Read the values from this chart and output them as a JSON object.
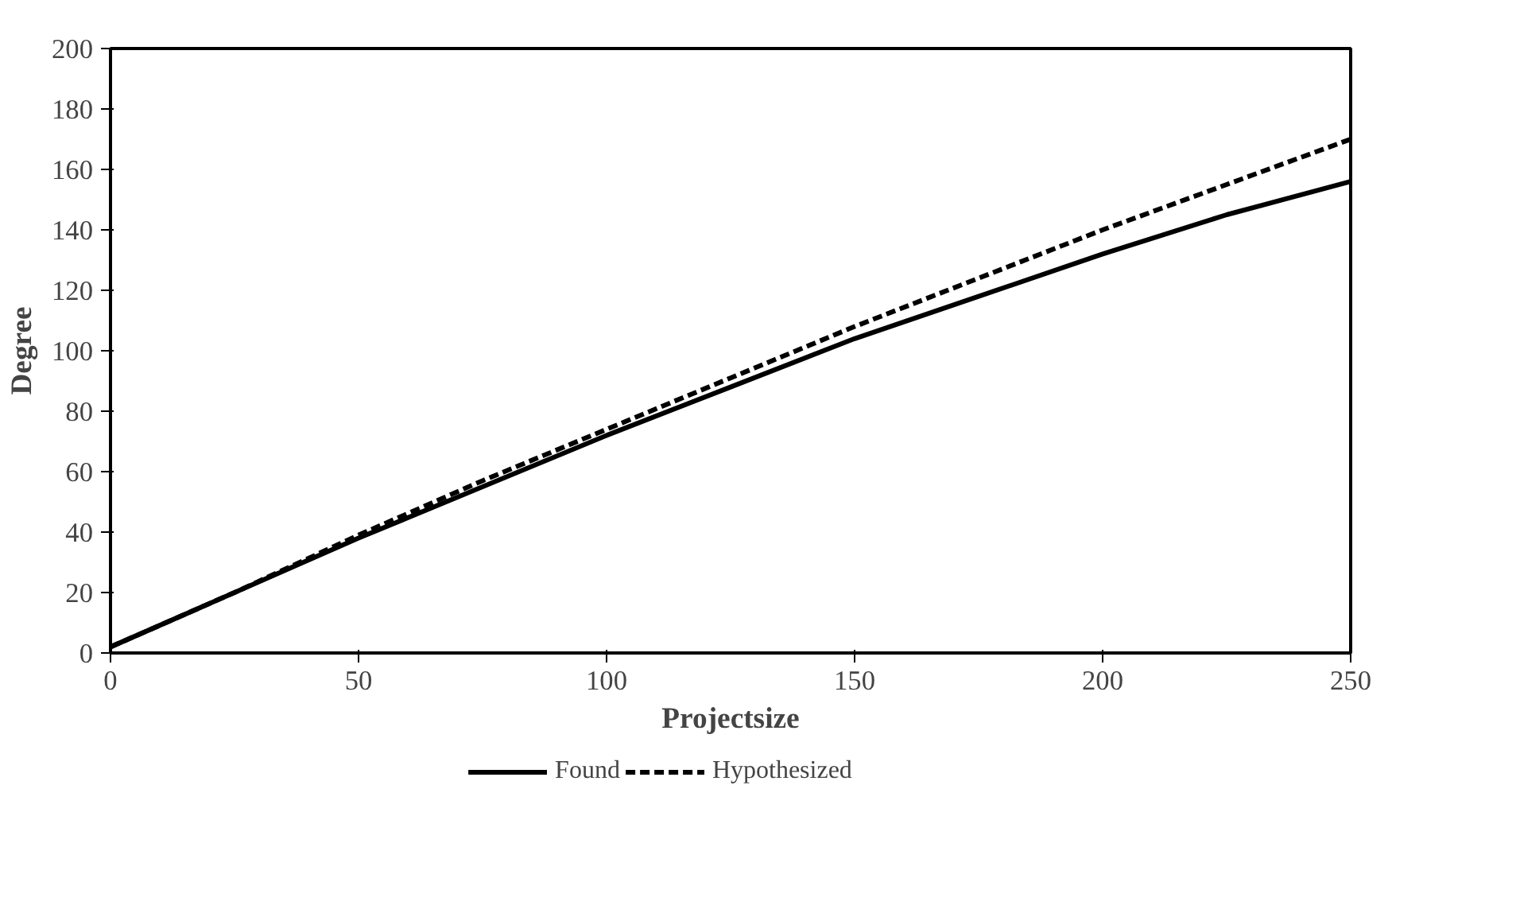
{
  "chart_data": {
    "type": "line",
    "xlabel": "Projectsize",
    "ylabel": "Degree",
    "x": [
      0,
      25,
      50,
      75,
      100,
      125,
      150,
      175,
      200,
      225,
      250
    ],
    "series": [
      {
        "name": "Found",
        "color": "#000000",
        "line_style": "solid",
        "values": [
          2,
          20,
          38,
          55,
          72,
          88,
          104,
          118,
          132,
          145,
          156
        ]
      },
      {
        "name": "Hypothesized",
        "color": "#000000",
        "line_style": "dashed",
        "values": [
          2,
          20,
          39,
          57,
          74,
          91,
          108,
          124,
          140,
          155,
          170
        ]
      }
    ],
    "xlim": [
      0,
      250
    ],
    "ylim": [
      0,
      200
    ],
    "xticks": [
      0,
      50,
      100,
      150,
      200,
      250
    ],
    "yticks": [
      0,
      20,
      40,
      60,
      80,
      100,
      120,
      140,
      160,
      180,
      200
    ],
    "grid": false,
    "legend": "bottom",
    "marker": "none"
  }
}
